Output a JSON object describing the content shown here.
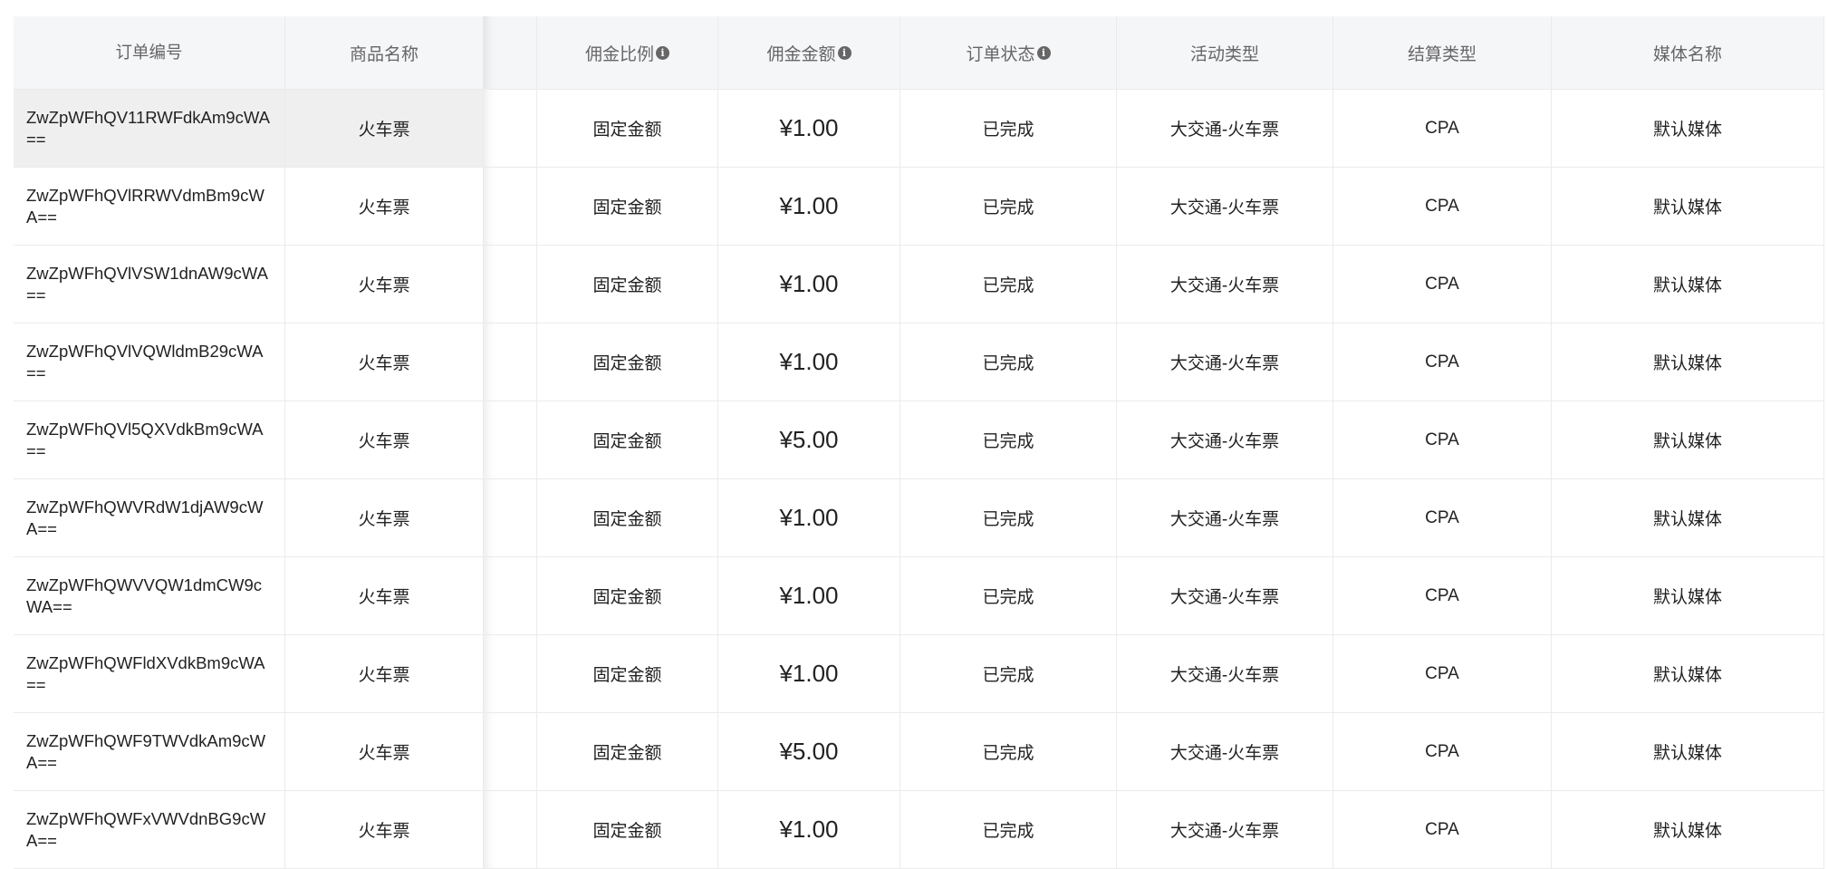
{
  "table": {
    "columns": [
      {
        "label": "订单编号",
        "info": false
      },
      {
        "label": "商品名称",
        "info": false
      },
      {
        "label": "",
        "info": false
      },
      {
        "label": "佣金比例",
        "info": true
      },
      {
        "label": "佣金金额",
        "info": true
      },
      {
        "label": "订单状态",
        "info": true
      },
      {
        "label": "活动类型",
        "info": false
      },
      {
        "label": "结算类型",
        "info": false
      },
      {
        "label": "媒体名称",
        "info": false
      }
    ],
    "info_icon": "info-circle-icon",
    "rows": [
      {
        "order_id": "ZwZpWFhQV11RWFdkAm9cWA==",
        "product": "火车票",
        "ratio": "固定金额",
        "amount": "¥1.00",
        "status": "已完成",
        "activity": "大交通-火车票",
        "settle": "CPA",
        "media": "默认媒体"
      },
      {
        "order_id": "ZwZpWFhQVlRRWVdmBm9cWA==",
        "product": "火车票",
        "ratio": "固定金额",
        "amount": "¥1.00",
        "status": "已完成",
        "activity": "大交通-火车票",
        "settle": "CPA",
        "media": "默认媒体"
      },
      {
        "order_id": "ZwZpWFhQVlVSW1dnAW9cWA==",
        "product": "火车票",
        "ratio": "固定金额",
        "amount": "¥1.00",
        "status": "已完成",
        "activity": "大交通-火车票",
        "settle": "CPA",
        "media": "默认媒体"
      },
      {
        "order_id": "ZwZpWFhQVlVQWldmB29cWA==",
        "product": "火车票",
        "ratio": "固定金额",
        "amount": "¥1.00",
        "status": "已完成",
        "activity": "大交通-火车票",
        "settle": "CPA",
        "media": "默认媒体"
      },
      {
        "order_id": "ZwZpWFhQVl5QXVdkBm9cWA==",
        "product": "火车票",
        "ratio": "固定金额",
        "amount": "¥5.00",
        "status": "已完成",
        "activity": "大交通-火车票",
        "settle": "CPA",
        "media": "默认媒体"
      },
      {
        "order_id": "ZwZpWFhQWVRdW1djAW9cWA==",
        "product": "火车票",
        "ratio": "固定金额",
        "amount": "¥1.00",
        "status": "已完成",
        "activity": "大交通-火车票",
        "settle": "CPA",
        "media": "默认媒体"
      },
      {
        "order_id": "ZwZpWFhQWVVQW1dmCW9cWA==",
        "product": "火车票",
        "ratio": "固定金额",
        "amount": "¥1.00",
        "status": "已完成",
        "activity": "大交通-火车票",
        "settle": "CPA",
        "media": "默认媒体"
      },
      {
        "order_id": "ZwZpWFhQWFldXVdkBm9cWA==",
        "product": "火车票",
        "ratio": "固定金额",
        "amount": "¥1.00",
        "status": "已完成",
        "activity": "大交通-火车票",
        "settle": "CPA",
        "media": "默认媒体"
      },
      {
        "order_id": "ZwZpWFhQWF9TWVdkAm9cWA==",
        "product": "火车票",
        "ratio": "固定金额",
        "amount": "¥5.00",
        "status": "已完成",
        "activity": "大交通-火车票",
        "settle": "CPA",
        "media": "默认媒体"
      },
      {
        "order_id": "ZwZpWFhQWFxVWVdnBG9cWA==",
        "product": "火车票",
        "ratio": "固定金额",
        "amount": "¥1.00",
        "status": "已完成",
        "activity": "大交通-火车票",
        "settle": "CPA",
        "media": "默认媒体"
      }
    ]
  }
}
